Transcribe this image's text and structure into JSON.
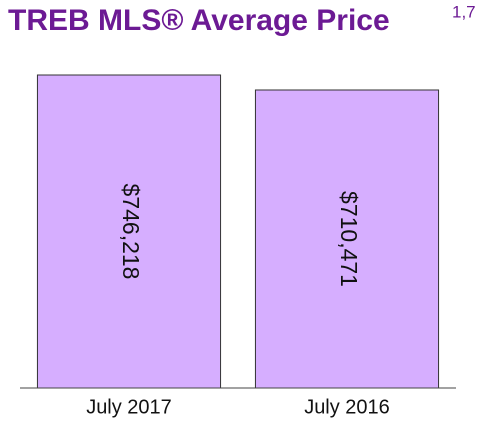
{
  "chart_data": {
    "type": "bar",
    "title": "TREB MLS® Average Price",
    "title_note": "1,7",
    "categories": [
      "July 2017",
      "July 2016"
    ],
    "values": [
      746218,
      710471
    ],
    "value_labels": [
      "$746,218",
      "$710,471"
    ],
    "color": "#d6aeff"
  }
}
